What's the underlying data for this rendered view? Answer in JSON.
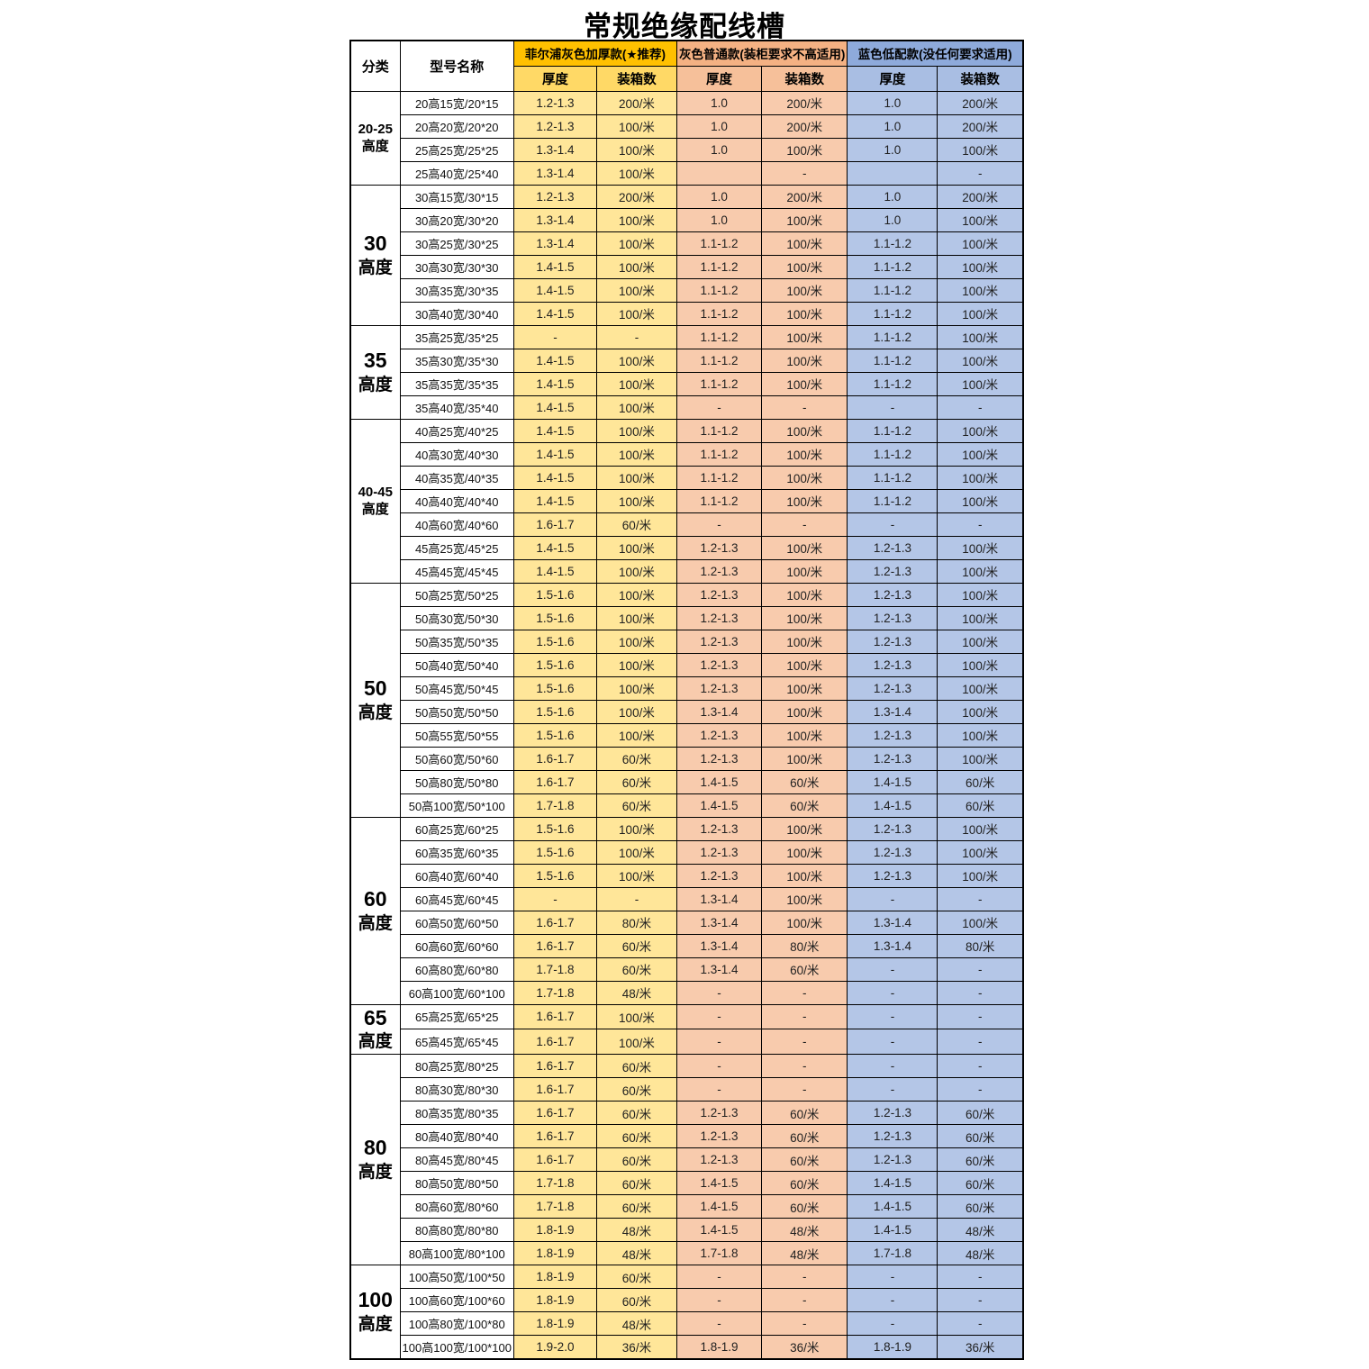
{
  "title": "常规绝缘配线槽",
  "table": {
    "category_header": "分类",
    "model_header": "型号名称",
    "sub_headers": [
      "厚度",
      "装箱数"
    ],
    "products": [
      {
        "name": "菲尔浦灰色加厚款(★推荐)",
        "header_bg": "#FFC000",
        "subheader_bg": "#FFD966",
        "cell_bg": "#FFE699"
      },
      {
        "name": "灰色普通款(装柜要求不高适用)",
        "header_bg": "#F4B183",
        "subheader_bg": "#F6C09A",
        "cell_bg": "#F8CBAD"
      },
      {
        "name": "蓝色低配款(没任何要求适用)",
        "header_bg": "#8EAADB",
        "subheader_bg": "#A9BEE3",
        "cell_bg": "#B4C6E7"
      }
    ],
    "groups": [
      {
        "category": [
          "20-25",
          "高度"
        ],
        "size": "small",
        "rows": [
          [
            "20高15宽/20*15",
            "1.2-1.3",
            "200/米",
            "1.0",
            "200/米",
            "1.0",
            "200/米"
          ],
          [
            "20高20宽/20*20",
            "1.2-1.3",
            "100/米",
            "1.0",
            "200/米",
            "1.0",
            "200/米"
          ],
          [
            "25高25宽/25*25",
            "1.3-1.4",
            "100/米",
            "1.0",
            "100/米",
            "1.0",
            "100/米"
          ],
          [
            "25高40宽/25*40",
            "1.3-1.4",
            "100/米",
            "",
            "-",
            "",
            "-"
          ]
        ]
      },
      {
        "category": [
          "30",
          "高度"
        ],
        "size": "large",
        "rows": [
          [
            "30高15宽/30*15",
            "1.2-1.3",
            "200/米",
            "1.0",
            "200/米",
            "1.0",
            "200/米"
          ],
          [
            "30高20宽/30*20",
            "1.3-1.4",
            "100/米",
            "1.0",
            "100/米",
            "1.0",
            "100/米"
          ],
          [
            "30高25宽/30*25",
            "1.3-1.4",
            "100/米",
            "1.1-1.2",
            "100/米",
            "1.1-1.2",
            "100/米"
          ],
          [
            "30高30宽/30*30",
            "1.4-1.5",
            "100/米",
            "1.1-1.2",
            "100/米",
            "1.1-1.2",
            "100/米"
          ],
          [
            "30高35宽/30*35",
            "1.4-1.5",
            "100/米",
            "1.1-1.2",
            "100/米",
            "1.1-1.2",
            "100/米"
          ],
          [
            "30高40宽/30*40",
            "1.4-1.5",
            "100/米",
            "1.1-1.2",
            "100/米",
            "1.1-1.2",
            "100/米"
          ]
        ]
      },
      {
        "category": [
          "35",
          "高度"
        ],
        "size": "large",
        "rows": [
          [
            "35高25宽/35*25",
            "-",
            "-",
            "1.1-1.2",
            "100/米",
            "1.1-1.2",
            "100/米"
          ],
          [
            "35高30宽/35*30",
            "1.4-1.5",
            "100/米",
            "1.1-1.2",
            "100/米",
            "1.1-1.2",
            "100/米"
          ],
          [
            "35高35宽/35*35",
            "1.4-1.5",
            "100/米",
            "1.1-1.2",
            "100/米",
            "1.1-1.2",
            "100/米"
          ],
          [
            "35高40宽/35*40",
            "1.4-1.5",
            "100/米",
            "-",
            "-",
            "-",
            "-"
          ]
        ]
      },
      {
        "category": [
          "40-45",
          "高度"
        ],
        "size": "small",
        "rows": [
          [
            "40高25宽/40*25",
            "1.4-1.5",
            "100/米",
            "1.1-1.2",
            "100/米",
            "1.1-1.2",
            "100/米"
          ],
          [
            "40高30宽/40*30",
            "1.4-1.5",
            "100/米",
            "1.1-1.2",
            "100/米",
            "1.1-1.2",
            "100/米"
          ],
          [
            "40高35宽/40*35",
            "1.4-1.5",
            "100/米",
            "1.1-1.2",
            "100/米",
            "1.1-1.2",
            "100/米"
          ],
          [
            "40高40宽/40*40",
            "1.4-1.5",
            "100/米",
            "1.1-1.2",
            "100/米",
            "1.1-1.2",
            "100/米"
          ],
          [
            "40高60宽/40*60",
            "1.6-1.7",
            "60/米",
            "-",
            "-",
            "-",
            "-"
          ],
          [
            "45高25宽/45*25",
            "1.4-1.5",
            "100/米",
            "1.2-1.3",
            "100/米",
            "1.2-1.3",
            "100/米"
          ],
          [
            "45高45宽/45*45",
            "1.4-1.5",
            "100/米",
            "1.2-1.3",
            "100/米",
            "1.2-1.3",
            "100/米"
          ]
        ]
      },
      {
        "category": [
          "50",
          "高度"
        ],
        "size": "large",
        "rows": [
          [
            "50高25宽/50*25",
            "1.5-1.6",
            "100/米",
            "1.2-1.3",
            "100/米",
            "1.2-1.3",
            "100/米"
          ],
          [
            "50高30宽/50*30",
            "1.5-1.6",
            "100/米",
            "1.2-1.3",
            "100/米",
            "1.2-1.3",
            "100/米"
          ],
          [
            "50高35宽/50*35",
            "1.5-1.6",
            "100/米",
            "1.2-1.3",
            "100/米",
            "1.2-1.3",
            "100/米"
          ],
          [
            "50高40宽/50*40",
            "1.5-1.6",
            "100/米",
            "1.2-1.3",
            "100/米",
            "1.2-1.3",
            "100/米"
          ],
          [
            "50高45宽/50*45",
            "1.5-1.6",
            "100/米",
            "1.2-1.3",
            "100/米",
            "1.2-1.3",
            "100/米"
          ],
          [
            "50高50宽/50*50",
            "1.5-1.6",
            "100/米",
            "1.3-1.4",
            "100/米",
            "1.3-1.4",
            "100/米"
          ],
          [
            "50高55宽/50*55",
            "1.5-1.6",
            "100/米",
            "1.2-1.3",
            "100/米",
            "1.2-1.3",
            "100/米"
          ],
          [
            "50高60宽/50*60",
            "1.6-1.7",
            "60/米",
            "1.2-1.3",
            "100/米",
            "1.2-1.3",
            "100/米"
          ],
          [
            "50高80宽/50*80",
            "1.6-1.7",
            "60/米",
            "1.4-1.5",
            "60/米",
            "1.4-1.5",
            "60/米"
          ],
          [
            "50高100宽/50*100",
            "1.7-1.8",
            "60/米",
            "1.4-1.5",
            "60/米",
            "1.4-1.5",
            "60/米"
          ]
        ]
      },
      {
        "category": [
          "60",
          "高度"
        ],
        "size": "large",
        "rows": [
          [
            "60高25宽/60*25",
            "1.5-1.6",
            "100/米",
            "1.2-1.3",
            "100/米",
            "1.2-1.3",
            "100/米"
          ],
          [
            "60高35宽/60*35",
            "1.5-1.6",
            "100/米",
            "1.2-1.3",
            "100/米",
            "1.2-1.3",
            "100/米"
          ],
          [
            "60高40宽/60*40",
            "1.5-1.6",
            "100/米",
            "1.2-1.3",
            "100/米",
            "1.2-1.3",
            "100/米"
          ],
          [
            "60高45宽/60*45",
            "-",
            "-",
            "1.3-1.4",
            "100/米",
            "-",
            "-"
          ],
          [
            "60高50宽/60*50",
            "1.6-1.7",
            "80/米",
            "1.3-1.4",
            "100/米",
            "1.3-1.4",
            "100/米"
          ],
          [
            "60高60宽/60*60",
            "1.6-1.7",
            "60/米",
            "1.3-1.4",
            "80/米",
            "1.3-1.4",
            "80/米"
          ],
          [
            "60高80宽/60*80",
            "1.7-1.8",
            "60/米",
            "1.3-1.4",
            "60/米",
            "-",
            "-"
          ],
          [
            "60高100宽/60*100",
            "1.7-1.8",
            "48/米",
            "-",
            "-",
            "-",
            "-"
          ]
        ]
      },
      {
        "category": [
          "65",
          "高度"
        ],
        "size": "large",
        "rows": [
          [
            "65高25宽/65*25",
            "1.6-1.7",
            "100/米",
            "-",
            "-",
            "-",
            "-"
          ],
          [
            "65高45宽/65*45",
            "1.6-1.7",
            "100/米",
            "-",
            "-",
            "-",
            "-"
          ]
        ]
      },
      {
        "category": [
          "80",
          "高度"
        ],
        "size": "large",
        "rows": [
          [
            "80高25宽/80*25",
            "1.6-1.7",
            "60/米",
            "-",
            "-",
            "-",
            "-"
          ],
          [
            "80高30宽/80*30",
            "1.6-1.7",
            "60/米",
            "-",
            "-",
            "-",
            "-"
          ],
          [
            "80高35宽/80*35",
            "1.6-1.7",
            "60/米",
            "1.2-1.3",
            "60/米",
            "1.2-1.3",
            "60/米"
          ],
          [
            "80高40宽/80*40",
            "1.6-1.7",
            "60/米",
            "1.2-1.3",
            "60/米",
            "1.2-1.3",
            "60/米"
          ],
          [
            "80高45宽/80*45",
            "1.6-1.7",
            "60/米",
            "1.2-1.3",
            "60/米",
            "1.2-1.3",
            "60/米"
          ],
          [
            "80高50宽/80*50",
            "1.7-1.8",
            "60/米",
            "1.4-1.5",
            "60/米",
            "1.4-1.5",
            "60/米"
          ],
          [
            "80高60宽/80*60",
            "1.7-1.8",
            "60/米",
            "1.4-1.5",
            "60/米",
            "1.4-1.5",
            "60/米"
          ],
          [
            "80高80宽/80*80",
            "1.8-1.9",
            "48/米",
            "1.4-1.5",
            "48/米",
            "1.4-1.5",
            "48/米"
          ],
          [
            "80高100宽/80*100",
            "1.8-1.9",
            "48/米",
            "1.7-1.8",
            "48/米",
            "1.7-1.8",
            "48/米"
          ]
        ]
      },
      {
        "category": [
          "100",
          "高度"
        ],
        "size": "large",
        "rows": [
          [
            "100高50宽/100*50",
            "1.8-1.9",
            "60/米",
            "-",
            "-",
            "-",
            "-"
          ],
          [
            "100高60宽/100*60",
            "1.8-1.9",
            "60/米",
            "-",
            "-",
            "-",
            "-"
          ],
          [
            "100高80宽/100*80",
            "1.8-1.9",
            "48/米",
            "-",
            "-",
            "-",
            "-"
          ],
          [
            "100高100宽/100*100",
            "1.9-2.0",
            "36/米",
            "1.8-1.9",
            "36/米",
            "1.8-1.9",
            "36/米"
          ]
        ]
      }
    ]
  }
}
